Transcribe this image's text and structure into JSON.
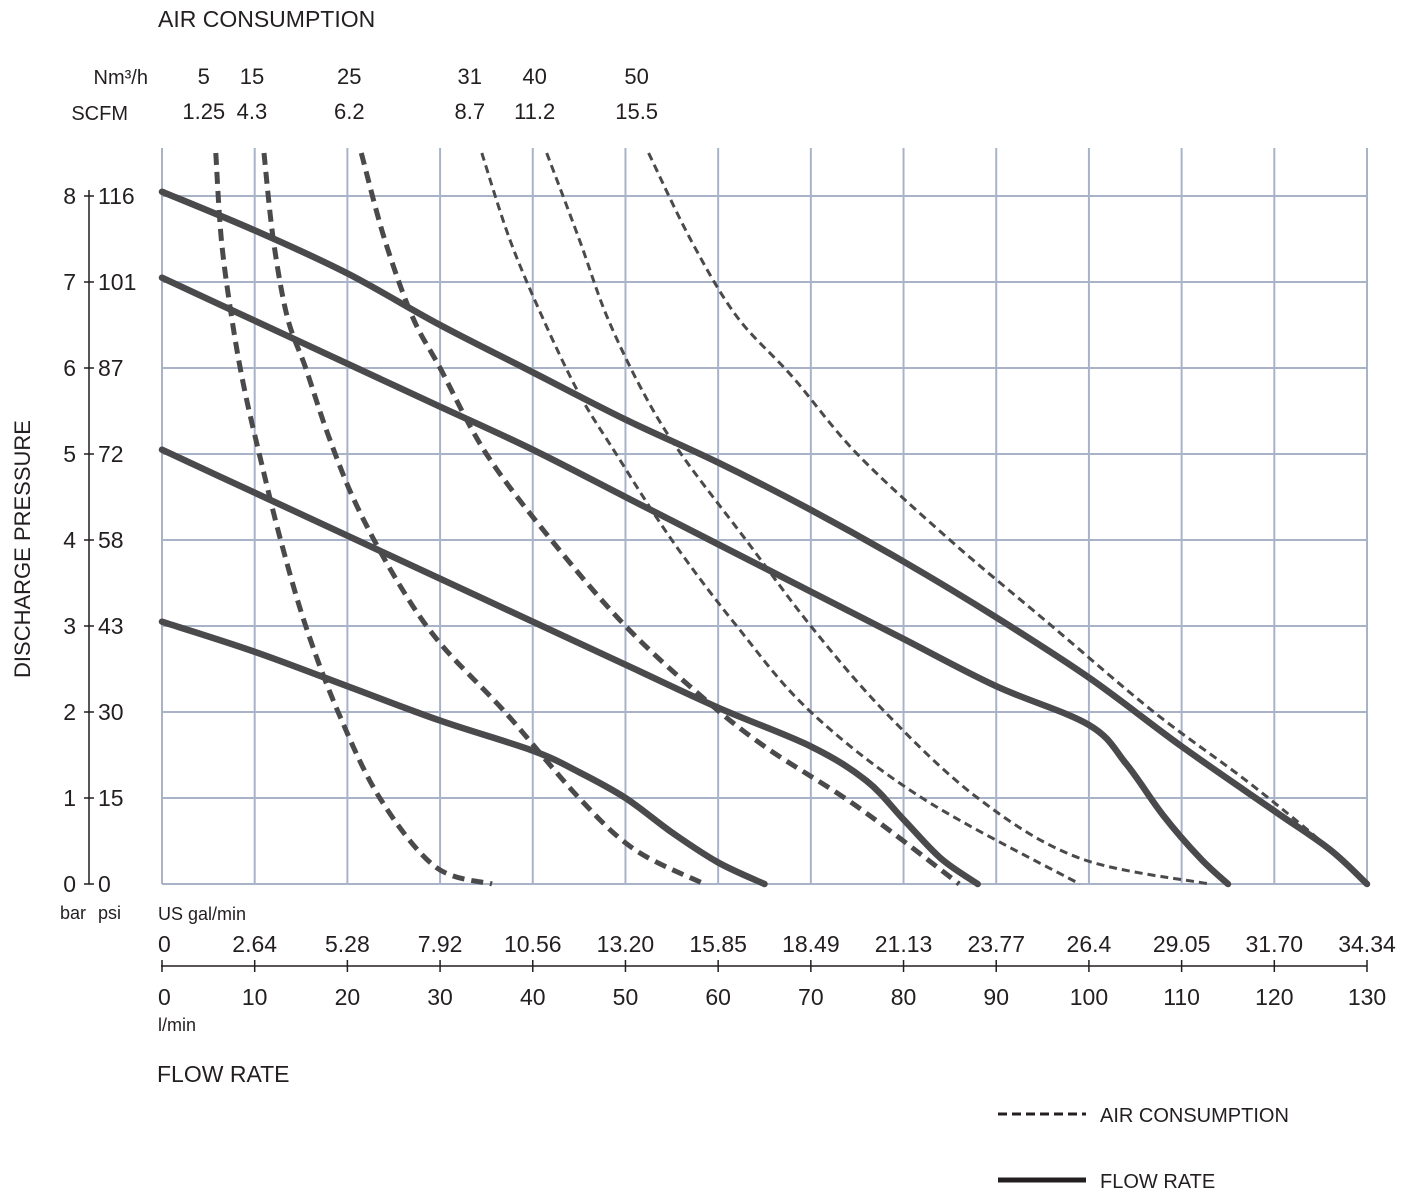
{
  "chart_data": {
    "type": "line",
    "title": "AIR CONSUMPTION",
    "xlabel": "FLOW RATE",
    "ylabel": "DISCHARGE PRESSURE",
    "x_unit_label": "l/min",
    "x_alt_unit_label": "US gal/min",
    "y_unit_labels": [
      "bar",
      "psi"
    ],
    "air_units": [
      "Nm³/h",
      "SCFM"
    ],
    "x_ticks": [
      0,
      10,
      20,
      30,
      40,
      50,
      60,
      70,
      80,
      90,
      100,
      110,
      120,
      130
    ],
    "x_alt_ticks": [
      "0",
      "2.64",
      "5.28",
      "7.92",
      "10.56",
      "13.20",
      "15.85",
      "18.49",
      "21.13",
      "23.77",
      "26.4",
      "29.05",
      "31.70",
      "34.34"
    ],
    "y_ticks_bar": [
      "0",
      "1",
      "2",
      "3",
      "4",
      "5",
      "6",
      "7",
      "8"
    ],
    "y_ticks_psi": [
      "0",
      "15",
      "30",
      "43",
      "58",
      "72",
      "87",
      "101",
      "116"
    ],
    "xlim": [
      0,
      130
    ],
    "ylim": [
      0,
      8
    ],
    "grid": true,
    "legend_position": "bottom-right",
    "legend": [
      {
        "label": "AIR CONSUMPTION",
        "style": "dashed"
      },
      {
        "label": "FLOW RATE",
        "style": "solid"
      }
    ],
    "air_consumption_labels": [
      {
        "nm3h": "5",
        "scfm": "1.25"
      },
      {
        "nm3h": "15",
        "scfm": "4.3"
      },
      {
        "nm3h": "25",
        "scfm": "6.2"
      },
      {
        "nm3h": "31",
        "scfm": "8.7"
      },
      {
        "nm3h": "40",
        "scfm": "11.2"
      },
      {
        "nm3h": "50",
        "scfm": "15.5"
      }
    ],
    "air_consumption_curves": [
      {
        "points": [
          [
            5.8,
            8.5
          ],
          [
            6.4,
            7.5
          ],
          [
            7.5,
            6.6
          ],
          [
            8.8,
            5.8
          ],
          [
            10.5,
            5.0
          ],
          [
            12.8,
            4.0
          ],
          [
            15.5,
            3.0
          ],
          [
            19.0,
            2.0
          ],
          [
            23.5,
            1.0
          ],
          [
            29.5,
            0.2
          ],
          [
            35.6,
            0.0
          ]
        ]
      },
      {
        "points": [
          [
            11.0,
            8.5
          ],
          [
            12.0,
            7.5
          ],
          [
            13.5,
            6.6
          ],
          [
            15.5,
            6.0
          ],
          [
            18.0,
            5.2
          ],
          [
            21.0,
            4.4
          ],
          [
            25.5,
            3.5
          ],
          [
            30.0,
            2.8
          ],
          [
            37.0,
            2.0
          ],
          [
            45.0,
            1.0
          ],
          [
            51.0,
            0.4
          ],
          [
            58.5,
            0.0
          ]
        ]
      },
      {
        "points": [
          [
            21.5,
            8.5
          ],
          [
            24.0,
            7.5
          ],
          [
            27.0,
            6.6
          ],
          [
            30.0,
            6.0
          ],
          [
            35.0,
            5.0
          ],
          [
            42.0,
            4.0
          ],
          [
            50.0,
            3.0
          ],
          [
            58.0,
            2.2
          ],
          [
            65.0,
            1.6
          ],
          [
            75.0,
            0.9
          ],
          [
            86.0,
            0.0
          ]
        ]
      },
      {
        "points": [
          [
            34.5,
            8.5
          ],
          [
            37.5,
            7.5
          ],
          [
            41.0,
            6.6
          ],
          [
            45.0,
            5.7
          ],
          [
            49.0,
            5.0
          ],
          [
            55.0,
            4.0
          ],
          [
            62.0,
            3.0
          ],
          [
            70.0,
            2.0
          ],
          [
            82.0,
            1.0
          ],
          [
            99.0,
            0.0
          ]
        ]
      },
      {
        "points": [
          [
            41.5,
            8.5
          ],
          [
            45.0,
            7.5
          ],
          [
            48.0,
            6.6
          ],
          [
            52.0,
            5.7
          ],
          [
            56.0,
            5.0
          ],
          [
            63.0,
            4.0
          ],
          [
            70.0,
            3.0
          ],
          [
            78.0,
            2.0
          ],
          [
            88.0,
            1.0
          ],
          [
            99.0,
            0.3
          ],
          [
            113.0,
            0.0
          ]
        ]
      },
      {
        "points": [
          [
            52.5,
            8.5
          ],
          [
            57.0,
            7.5
          ],
          [
            62.0,
            6.6
          ],
          [
            68.0,
            5.9
          ],
          [
            75.0,
            5.0
          ],
          [
            85.0,
            4.0
          ],
          [
            96.0,
            3.0
          ],
          [
            107.0,
            2.0
          ],
          [
            117.0,
            1.2
          ],
          [
            125.0,
            0.5
          ],
          [
            130.0,
            0.0
          ]
        ]
      }
    ],
    "flow_rate_curves": [
      {
        "points": [
          [
            0.0,
            3.05
          ],
          [
            10.0,
            2.7
          ],
          [
            20.0,
            2.3
          ],
          [
            30.0,
            1.9
          ],
          [
            40.0,
            1.55
          ],
          [
            45.0,
            1.3
          ],
          [
            50.0,
            1.0
          ],
          [
            55.0,
            0.6
          ],
          [
            60.0,
            0.25
          ],
          [
            65.0,
            0.0
          ]
        ]
      },
      {
        "points": [
          [
            0.0,
            5.05
          ],
          [
            10.0,
            4.55
          ],
          [
            20.0,
            4.05
          ],
          [
            30.0,
            3.55
          ],
          [
            40.0,
            3.05
          ],
          [
            50.0,
            2.55
          ],
          [
            60.0,
            2.05
          ],
          [
            70.0,
            1.6
          ],
          [
            76.0,
            1.2
          ],
          [
            80.0,
            0.75
          ],
          [
            84.0,
            0.3
          ],
          [
            88.0,
            0.0
          ]
        ]
      },
      {
        "points": [
          [
            0.0,
            7.05
          ],
          [
            10.0,
            6.55
          ],
          [
            20.0,
            6.05
          ],
          [
            30.0,
            5.55
          ],
          [
            40.0,
            5.05
          ],
          [
            50.0,
            4.5
          ],
          [
            60.0,
            3.95
          ],
          [
            70.0,
            3.4
          ],
          [
            80.0,
            2.85
          ],
          [
            90.0,
            2.3
          ],
          [
            100.0,
            1.85
          ],
          [
            104.0,
            1.4
          ],
          [
            108.0,
            0.8
          ],
          [
            112.0,
            0.3
          ],
          [
            115.0,
            0.0
          ]
        ]
      },
      {
        "points": [
          [
            0.0,
            8.05
          ],
          [
            10.0,
            7.6
          ],
          [
            20.0,
            7.1
          ],
          [
            30.0,
            6.5
          ],
          [
            40.0,
            5.95
          ],
          [
            50.0,
            5.4
          ],
          [
            60.0,
            4.9
          ],
          [
            70.0,
            4.35
          ],
          [
            80.0,
            3.75
          ],
          [
            90.0,
            3.1
          ],
          [
            100.0,
            2.4
          ],
          [
            110.0,
            1.6
          ],
          [
            120.0,
            0.85
          ],
          [
            126.0,
            0.4
          ],
          [
            130.0,
            0.0
          ]
        ]
      }
    ]
  }
}
